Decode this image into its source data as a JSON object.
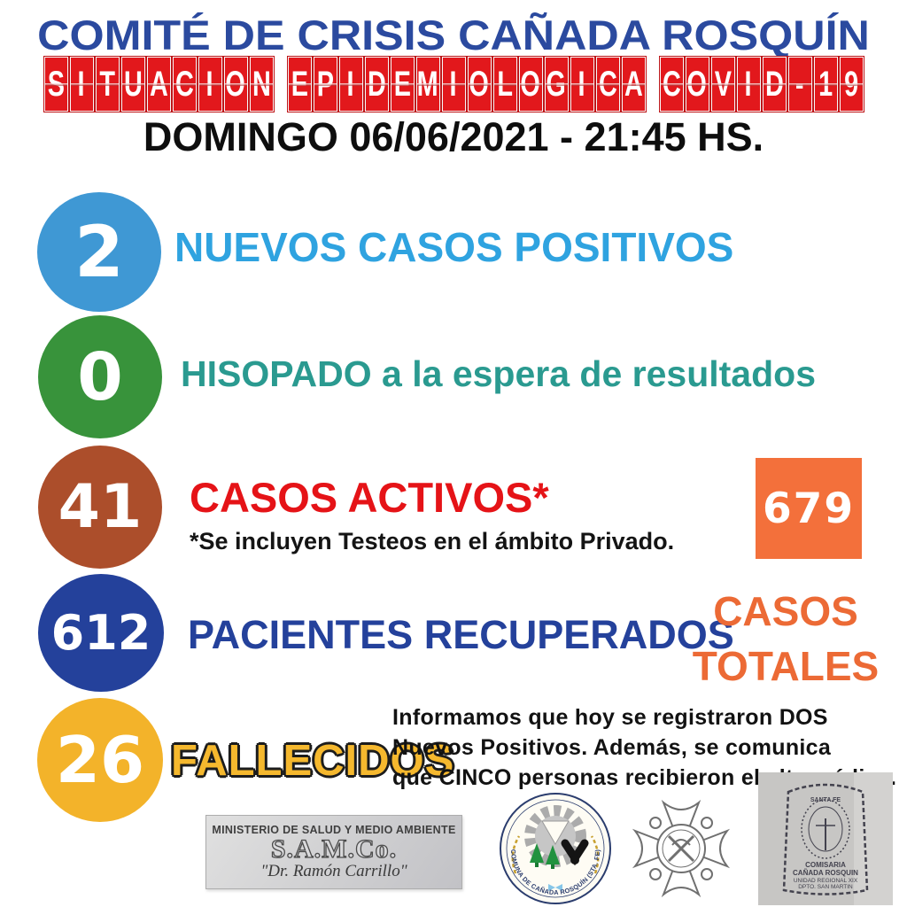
{
  "header": {
    "title": "COMITÉ DE CRISIS CAÑADA ROSQUÍN",
    "subtitle_words": [
      "SITUACION",
      "EPIDEMIOLOGICA",
      "COVID-19"
    ],
    "datetime": "DOMINGO 06/06/2021 - 21:45 HS.",
    "title_color": "#2B4A9F",
    "flip_tile_color": "#E2181C"
  },
  "stats": [
    {
      "value": "2",
      "label": "NUEVOS CASOS POSITIVOS",
      "circle_color": "#3F98D4",
      "label_color": "#2FA3E0"
    },
    {
      "value": "0",
      "label": "HISOPADO a la espera de resultados",
      "circle_color": "#38933B",
      "label_color": "#2A9A90"
    },
    {
      "value": "41",
      "label": "CASOS ACTIVOS*",
      "note": "*Se incluyen Testeos en el ámbito Privado.",
      "circle_color": "#AC4E2B",
      "label_color": "#E51317"
    },
    {
      "value": "612",
      "label": "PACIENTES RECUPERADOS",
      "circle_color": "#24419B",
      "label_color": "#24419B"
    },
    {
      "value": "26",
      "label": "FALLECIDOS",
      "circle_color": "#F3B32A",
      "label_color": "#F5B82E"
    }
  ],
  "totals": {
    "value": "679",
    "label_line1": "CASOS",
    "label_line2": "TOTALES",
    "box_color": "#F3703B",
    "text_color": "#EC6A35"
  },
  "announcement": {
    "lines": [
      "Informamos que hoy se registraron DOS",
      "Nuevos Positivos. Además, se comunica",
      "que CINCO personas recibieron el alta médica."
    ]
  },
  "footer": {
    "samco": {
      "line1": "MINISTERIO DE SALUD Y MEDIO AMBIENTE",
      "line2": "S.A.M.Co.",
      "line3": "\"Dr. Ramón Carrillo\""
    },
    "comuna_ring_text": "COMUNA DE CAÑADA ROSQUÍN (STA. FE)",
    "police": {
      "top": "SANTA FE",
      "line1": "COMISARIA",
      "line2": "CAÑADA ROSQUIN",
      "line3": "UNIDAD REGIONAL XIX",
      "line4": "DPTO. SAN MARTIN"
    }
  }
}
